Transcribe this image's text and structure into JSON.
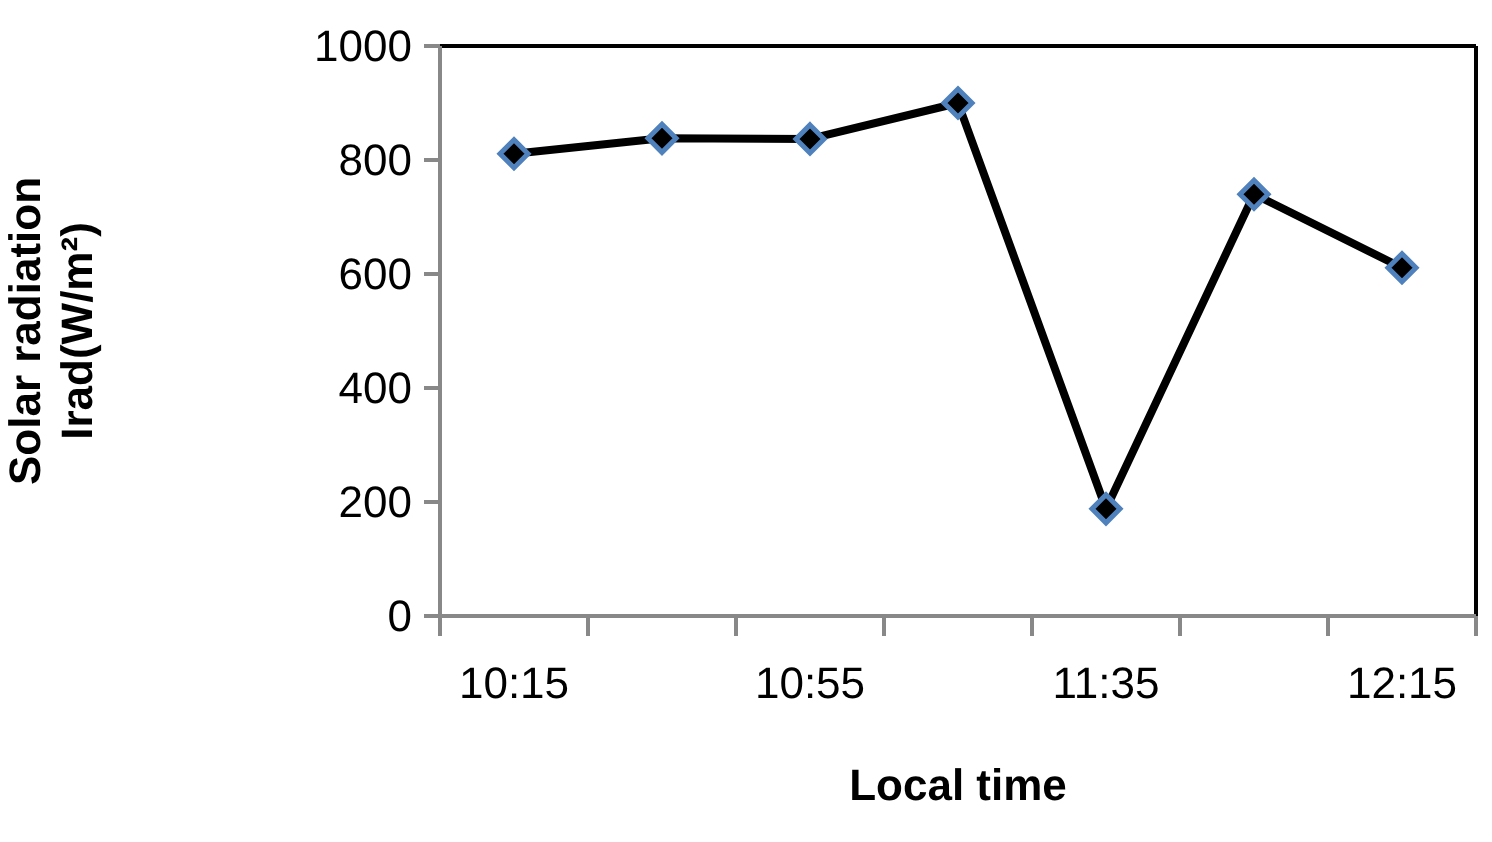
{
  "chart_data": {
    "type": "line",
    "xlabel": "Local time",
    "ylabel": "Solar radiation\nIrad(W/m²)",
    "categories": [
      "10:15",
      null,
      "10:55",
      null,
      "11:35",
      null,
      "12:15"
    ],
    "series": [
      {
        "color": "#000000",
        "values": [
          811,
          838,
          837,
          900,
          188,
          740,
          611
        ]
      }
    ],
    "ylim": [
      0,
      1000
    ],
    "yticks": [
      0,
      200,
      400,
      600,
      800,
      1000
    ],
    "grid": false,
    "marker": "diamond",
    "line_style": "solid"
  }
}
